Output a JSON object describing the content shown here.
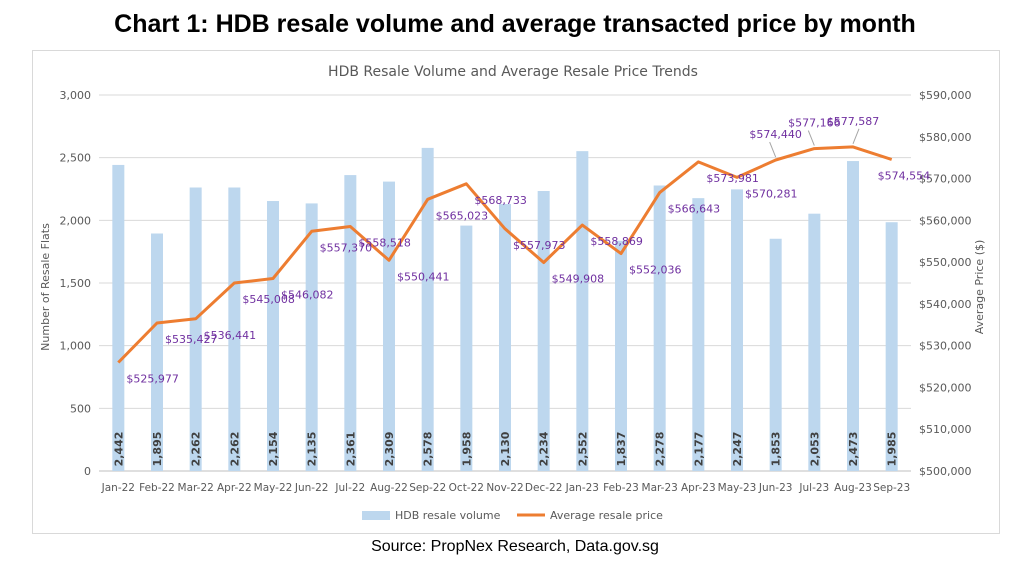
{
  "heading": "Chart 1: HDB resale volume and average transacted price by month",
  "source": "Source: PropNex Research, Data.gov.sg",
  "chart_data": {
    "type": "bar+line",
    "title": "HDB Resale Volume and Average Resale Price Trends",
    "ylabel_left": "Number of Resale Flats",
    "ylabel_right": "Average Price ($)",
    "ylim_left": [
      0,
      3000
    ],
    "ylim_right": [
      500000,
      590000
    ],
    "y_ticks_left": [
      "0",
      "500",
      "1,000",
      "1,500",
      "2,000",
      "2,500",
      "3,000"
    ],
    "y_ticks_right": [
      "$500,000",
      "$510,000",
      "$520,000",
      "$530,000",
      "$540,000",
      "$550,000",
      "$560,000",
      "$570,000",
      "$580,000",
      "$590,000"
    ],
    "grid": true,
    "legend_position": "bottom",
    "categories": [
      "Jan-22",
      "Feb-22",
      "Mar-22",
      "Apr-22",
      "May-22",
      "Jun-22",
      "Jul-22",
      "Aug-22",
      "Sep-22",
      "Oct-22",
      "Nov-22",
      "Dec-22",
      "Jan-23",
      "Feb-23",
      "Mar-23",
      "Apr-23",
      "May-23",
      "Jun-23",
      "Jul-23",
      "Aug-23",
      "Sep-23"
    ],
    "series": [
      {
        "name": "HDB resale volume",
        "type": "bar",
        "axis": "left",
        "color": "#bdd7ee",
        "values": [
          2442,
          1895,
          2262,
          2262,
          2154,
          2135,
          2361,
          2309,
          2578,
          1958,
          2130,
          2234,
          2552,
          1837,
          2278,
          2177,
          2247,
          1853,
          2053,
          2473,
          1985
        ],
        "labels": [
          "2,442",
          "1,895",
          "2,262",
          "2,262",
          "2,154",
          "2,135",
          "2,361",
          "2,309",
          "2,578",
          "1,958",
          "2,130",
          "2,234",
          "2,552",
          "1,837",
          "2,278",
          "2,177",
          "2,247",
          "1,853",
          "2,053",
          "2,473",
          "1,985"
        ]
      },
      {
        "name": "Average resale price",
        "type": "line",
        "axis": "right",
        "color": "#ed7d31",
        "label_color": "#7030a0",
        "values": [
          525977,
          535427,
          536441,
          545008,
          546082,
          557370,
          558518,
          550441,
          565023,
          568733,
          557973,
          549908,
          558869,
          552036,
          566643,
          573981,
          570281,
          574440,
          577166,
          577587,
          574554
        ],
        "labels": [
          "$525,977",
          "$535,427",
          "$536,441",
          "$545,008",
          "$546,082",
          "$557,370",
          "$558,518",
          "$550,441",
          "$565,023",
          "$568,733",
          "$557,973",
          "$549,908",
          "$558,869",
          "$552,036",
          "$566,643",
          "$573,981",
          "$570,281",
          "$574,440",
          "$577,166",
          "$577,587",
          "$574,554"
        ]
      }
    ]
  }
}
